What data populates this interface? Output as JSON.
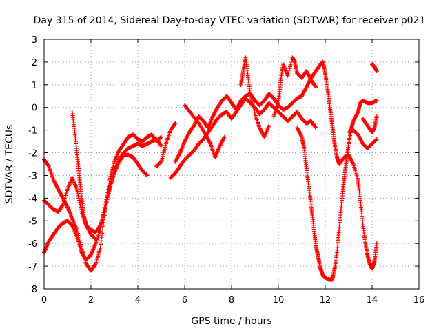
{
  "chart_data": {
    "type": "scatter",
    "title": "Day 315 of 2014, Sidereal Day-to-day VTEC variation (SDTVAR) for receiver p021",
    "xlabel": "GPS time / hours",
    "ylabel": "SDTVAR / TECUs",
    "xlim": [
      0,
      16
    ],
    "ylim": [
      -8,
      3
    ],
    "x_ticks": [
      0,
      2,
      4,
      6,
      8,
      10,
      12,
      14,
      16
    ],
    "y_ticks": [
      -8,
      -7,
      -6,
      -5,
      -4,
      -3,
      -2,
      -1,
      0,
      1,
      2,
      3
    ],
    "x_tick_labels": [
      "0",
      "2",
      "4",
      "6",
      "8",
      "10",
      "12",
      "14",
      "16"
    ],
    "y_tick_labels": [
      "-8",
      "-7",
      "-6",
      "-5",
      "-4",
      "-3",
      "-2",
      "-1",
      "0",
      "1",
      "2",
      "3"
    ],
    "grid": true,
    "marker": "+",
    "marker_color": "#ff0000",
    "series": [
      {
        "values": [
          [
            0.0,
            -2.3
          ],
          [
            0.2,
            -2.6
          ],
          [
            0.4,
            -3.2
          ],
          [
            0.6,
            -3.6
          ],
          [
            0.8,
            -4.0
          ],
          [
            1.0,
            -4.4
          ],
          [
            1.2,
            -4.9
          ],
          [
            1.4,
            -5.4
          ],
          [
            1.6,
            -6.2
          ],
          [
            1.8,
            -6.9
          ],
          [
            2.0,
            -7.2
          ],
          [
            2.2,
            -6.9
          ],
          [
            2.4,
            -6.2
          ],
          [
            2.6,
            -4.6
          ],
          [
            2.8,
            -3.2
          ],
          [
            3.0,
            -2.4
          ],
          [
            3.2,
            -1.9
          ],
          [
            3.4,
            -1.6
          ],
          [
            3.6,
            -1.3
          ],
          [
            3.8,
            -1.2
          ],
          [
            4.0,
            -1.4
          ],
          [
            4.2,
            -1.5
          ],
          [
            4.4,
            -1.3
          ],
          [
            4.6,
            -1.2
          ],
          [
            4.8,
            -1.5
          ],
          [
            5.0,
            -1.3
          ]
        ]
      },
      {
        "values": [
          [
            0.0,
            -4.1
          ],
          [
            0.2,
            -4.3
          ],
          [
            0.4,
            -4.5
          ],
          [
            0.6,
            -4.6
          ],
          [
            0.8,
            -4.3
          ],
          [
            1.0,
            -3.6
          ],
          [
            1.2,
            -3.1
          ],
          [
            1.4,
            -3.6
          ],
          [
            1.6,
            -4.6
          ],
          [
            1.8,
            -5.2
          ],
          [
            2.0,
            -5.4
          ],
          [
            2.2,
            -5.5
          ],
          [
            2.4,
            -5.2
          ],
          [
            2.6,
            -4.5
          ],
          [
            2.8,
            -3.6
          ],
          [
            3.0,
            -2.8
          ],
          [
            3.2,
            -2.3
          ],
          [
            3.4,
            -2.0
          ],
          [
            3.6,
            -1.8
          ],
          [
            3.8,
            -1.7
          ],
          [
            4.0,
            -1.6
          ],
          [
            4.2,
            -1.7
          ],
          [
            4.4,
            -1.6
          ],
          [
            4.6,
            -1.5
          ],
          [
            4.8,
            -1.4
          ],
          [
            5.0,
            -1.7
          ]
        ]
      },
      {
        "values": [
          [
            0.0,
            -6.4
          ],
          [
            0.2,
            -5.9
          ],
          [
            0.4,
            -5.6
          ],
          [
            0.6,
            -5.3
          ],
          [
            0.8,
            -5.1
          ],
          [
            1.0,
            -5.0
          ],
          [
            1.2,
            -5.2
          ],
          [
            1.4,
            -5.7
          ],
          [
            1.6,
            -6.4
          ],
          [
            1.8,
            -6.7
          ],
          [
            2.0,
            -6.5
          ],
          [
            2.2,
            -6.0
          ],
          [
            2.4,
            -5.4
          ],
          [
            2.6,
            -4.3
          ],
          [
            2.8,
            -3.5
          ],
          [
            3.0,
            -2.9
          ],
          [
            3.2,
            -2.4
          ],
          [
            3.4,
            -2.1
          ],
          [
            3.6,
            -2.1
          ],
          [
            3.8,
            -2.2
          ],
          [
            4.0,
            -2.5
          ],
          [
            4.2,
            -2.8
          ],
          [
            4.4,
            -3.0
          ]
        ]
      },
      {
        "values": [
          [
            1.2,
            -0.2
          ],
          [
            1.3,
            -1.0
          ],
          [
            1.4,
            -2.0
          ],
          [
            1.5,
            -3.0
          ],
          [
            1.6,
            -4.0
          ],
          [
            1.7,
            -4.8
          ],
          [
            1.8,
            -5.2
          ],
          [
            2.0,
            -5.6
          ],
          [
            2.2,
            -5.8
          ]
        ]
      },
      {
        "values": [
          [
            4.8,
            -2.6
          ],
          [
            5.0,
            -2.4
          ],
          [
            5.2,
            -1.6
          ],
          [
            5.4,
            -1.0
          ],
          [
            5.6,
            -0.7
          ]
        ]
      },
      {
        "values": [
          [
            5.4,
            -3.1
          ],
          [
            5.6,
            -2.9
          ],
          [
            5.8,
            -2.6
          ],
          [
            6.0,
            -2.3
          ],
          [
            6.2,
            -2.1
          ],
          [
            6.4,
            -1.9
          ],
          [
            6.6,
            -1.6
          ],
          [
            6.8,
            -1.4
          ],
          [
            7.0,
            -1.1
          ],
          [
            7.2,
            -0.8
          ],
          [
            7.4,
            -0.5
          ],
          [
            7.6,
            -0.3
          ],
          [
            7.8,
            -0.2
          ],
          [
            8.0,
            -0.5
          ],
          [
            8.2,
            -0.2
          ],
          [
            8.4,
            0.1
          ],
          [
            8.6,
            0.4
          ],
          [
            8.8,
            0.2
          ],
          [
            9.0,
            0.0
          ],
          [
            9.2,
            -0.3
          ],
          [
            9.4,
            -0.1
          ],
          [
            9.6,
            0.2
          ],
          [
            9.8,
            0.0
          ],
          [
            10.0,
            -0.2
          ],
          [
            10.2,
            -0.4
          ],
          [
            10.4,
            -0.6
          ],
          [
            10.6,
            -0.4
          ],
          [
            10.8,
            -0.2
          ],
          [
            11.0,
            -0.5
          ],
          [
            11.2,
            -0.7
          ],
          [
            11.4,
            -0.6
          ],
          [
            11.6,
            -0.9
          ]
        ]
      },
      {
        "values": [
          [
            5.6,
            -2.4
          ],
          [
            5.8,
            -2.0
          ],
          [
            6.0,
            -1.5
          ],
          [
            6.2,
            -1.1
          ],
          [
            6.4,
            -0.8
          ],
          [
            6.6,
            -0.4
          ],
          [
            6.8,
            -0.6
          ],
          [
            7.0,
            -0.9
          ],
          [
            7.2,
            -0.4
          ],
          [
            7.4,
            0.0
          ],
          [
            7.6,
            0.3
          ],
          [
            7.8,
            0.5
          ],
          [
            8.0,
            0.2
          ],
          [
            8.2,
            -0.1
          ],
          [
            8.4,
            0.3
          ],
          [
            8.6,
            0.5
          ],
          [
            8.8,
            0.6
          ],
          [
            9.0,
            0.3
          ],
          [
            9.2,
            0.1
          ],
          [
            9.4,
            0.3
          ],
          [
            9.6,
            0.6
          ],
          [
            9.8,
            0.4
          ],
          [
            10.0,
            0.1
          ],
          [
            10.2,
            -0.1
          ],
          [
            10.4,
            0.0
          ],
          [
            10.6,
            0.2
          ],
          [
            10.8,
            0.4
          ],
          [
            11.0,
            0.5
          ],
          [
            11.2,
            0.9
          ],
          [
            11.4,
            1.3
          ],
          [
            11.6,
            1.6
          ],
          [
            11.8,
            1.9
          ],
          [
            11.9,
            2.0
          ]
        ]
      },
      {
        "values": [
          [
            6.0,
            0.1
          ],
          [
            6.3,
            -0.3
          ],
          [
            6.6,
            -0.7
          ],
          [
            6.9,
            -1.2
          ],
          [
            7.1,
            -1.6
          ],
          [
            7.3,
            -2.2
          ],
          [
            7.5,
            -1.7
          ],
          [
            7.7,
            -1.3
          ]
        ]
      },
      {
        "values": [
          [
            8.4,
            1.0
          ],
          [
            8.5,
            1.6
          ],
          [
            8.6,
            2.2
          ],
          [
            8.7,
            1.4
          ],
          [
            8.8,
            0.6
          ],
          [
            9.0,
            -0.3
          ],
          [
            9.2,
            -0.9
          ],
          [
            9.4,
            -1.3
          ],
          [
            9.6,
            -0.8
          ]
        ]
      },
      {
        "values": [
          [
            9.8,
            -0.4
          ],
          [
            10.0,
            0.2
          ],
          [
            10.1,
            1.2
          ],
          [
            10.2,
            1.9
          ],
          [
            10.4,
            1.4
          ],
          [
            10.6,
            2.2
          ],
          [
            10.7,
            2.0
          ],
          [
            10.8,
            1.5
          ],
          [
            11.0,
            1.3
          ],
          [
            11.2,
            1.6
          ],
          [
            11.4,
            1.2
          ],
          [
            11.6,
            0.9
          ]
        ]
      },
      {
        "values": [
          [
            10.8,
            -0.9
          ],
          [
            11.0,
            -1.3
          ],
          [
            11.1,
            -1.8
          ],
          [
            11.2,
            -2.7
          ],
          [
            11.3,
            -3.5
          ],
          [
            11.4,
            -4.3
          ],
          [
            11.5,
            -5.2
          ],
          [
            11.6,
            -6.1
          ],
          [
            11.7,
            -6.6
          ],
          [
            11.8,
            -7.1
          ],
          [
            11.9,
            -7.4
          ],
          [
            12.0,
            -7.5
          ],
          [
            12.2,
            -7.6
          ],
          [
            12.3,
            -7.5
          ]
        ]
      },
      {
        "values": [
          [
            11.9,
            2.0
          ],
          [
            12.0,
            1.5
          ],
          [
            12.1,
            0.8
          ],
          [
            12.2,
            0.0
          ],
          [
            12.3,
            -0.8
          ],
          [
            12.4,
            -1.6
          ],
          [
            12.5,
            -2.2
          ],
          [
            12.6,
            -2.5
          ],
          [
            12.8,
            -2.2
          ],
          [
            13.0,
            -2.1
          ],
          [
            13.2,
            -2.5
          ],
          [
            13.4,
            -3.2
          ],
          [
            13.5,
            -4.1
          ],
          [
            13.6,
            -5.1
          ],
          [
            13.7,
            -5.9
          ],
          [
            13.8,
            -6.5
          ],
          [
            13.9,
            -6.9
          ],
          [
            14.0,
            -7.1
          ],
          [
            14.1,
            -6.8
          ],
          [
            14.2,
            -6.0
          ]
        ]
      },
      {
        "values": [
          [
            12.3,
            -7.6
          ],
          [
            12.4,
            -7.1
          ],
          [
            12.5,
            -6.4
          ],
          [
            12.6,
            -5.3
          ],
          [
            12.7,
            -4.2
          ],
          [
            12.8,
            -3.2
          ],
          [
            12.9,
            -2.4
          ],
          [
            13.0,
            -1.6
          ],
          [
            13.1,
            -1.0
          ],
          [
            13.2,
            -0.6
          ],
          [
            13.4,
            -0.2
          ],
          [
            13.5,
            0.2
          ],
          [
            13.6,
            0.3
          ],
          [
            13.8,
            0.2
          ],
          [
            14.0,
            0.2
          ],
          [
            14.2,
            0.3
          ]
        ]
      },
      {
        "values": [
          [
            13.0,
            -1.1
          ],
          [
            13.2,
            -1.0
          ],
          [
            13.4,
            -1.2
          ],
          [
            13.6,
            -1.6
          ],
          [
            13.8,
            -1.8
          ],
          [
            14.0,
            -1.6
          ],
          [
            14.2,
            -1.4
          ]
        ]
      },
      {
        "values": [
          [
            13.6,
            -0.5
          ],
          [
            13.8,
            -0.8
          ],
          [
            14.0,
            -1.1
          ],
          [
            14.1,
            -0.9
          ],
          [
            14.2,
            -0.4
          ]
        ]
      },
      {
        "values": [
          [
            14.0,
            1.9
          ],
          [
            14.1,
            1.8
          ],
          [
            14.2,
            1.6
          ]
        ]
      }
    ]
  }
}
